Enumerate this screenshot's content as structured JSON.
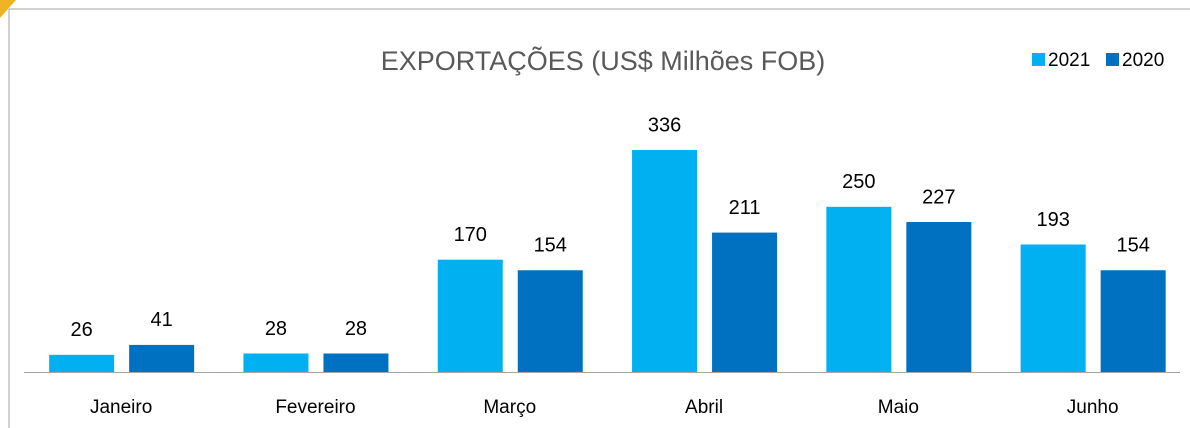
{
  "chart_data": {
    "type": "bar",
    "title": "EXPORTAÇÕES (US$ Milhões FOB)",
    "categories": [
      "Janeiro",
      "Fevereiro",
      "Março",
      "Abril",
      "Maio",
      "Junho"
    ],
    "series": [
      {
        "name": "2021",
        "color": "#00b0f0",
        "values": [
          26,
          28,
          170,
          336,
          250,
          193
        ]
      },
      {
        "name": "2020",
        "color": "#0070c0",
        "values": [
          41,
          28,
          154,
          211,
          227,
          154
        ]
      }
    ],
    "legend": "top-right"
  }
}
